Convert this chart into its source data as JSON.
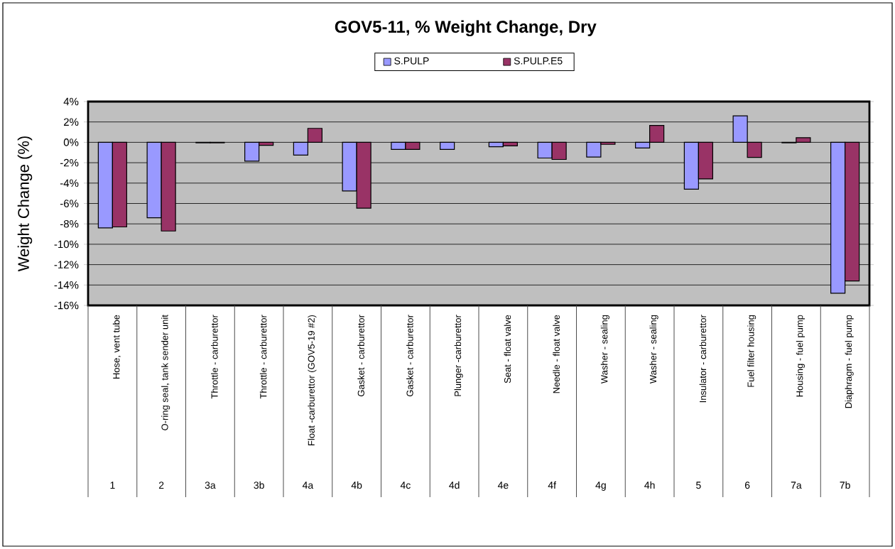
{
  "chart_data": {
    "type": "bar",
    "title": "GOV5-11, % Weight Change, Dry",
    "ylabel": "Weight Change (%)",
    "categories": [
      "Hose, vent tube",
      "O-ring seal, tank sender unit",
      "Throttle - carburettor",
      "Throttle - carburettor",
      "Float -carburettor (GOV5-19 #2)",
      "Gasket - carburettor",
      "Gasket - carburettor",
      "Plunger -carburettor",
      "Seat - float valve",
      "Needle - float valve",
      "Washer - sealing",
      "Washer - sealing",
      "Insulator - carburettor",
      "Fuel filter housing",
      "Housing - fuel pump",
      "Diaphragm - fuel pump"
    ],
    "series": [
      {
        "name": "S.PULP",
        "color": "#9999ff",
        "values": [
          -8.4,
          -7.4,
          -0.05,
          -1.85,
          -1.25,
          -4.77,
          -0.7,
          -0.7,
          -0.44,
          -1.54,
          -1.44,
          -0.56,
          -4.6,
          2.6,
          -0.05,
          -14.8
        ]
      },
      {
        "name": "S.PULP.E5",
        "color": "#993366",
        "values": [
          -8.3,
          -8.7,
          -0.05,
          -0.3,
          1.37,
          -6.46,
          -0.7,
          null,
          -0.34,
          -1.68,
          -0.2,
          1.66,
          -3.59,
          -1.48,
          0.45,
          -13.6
        ]
      }
    ],
    "ylim": [
      -16,
      4
    ],
    "yticks": [
      {
        "value": -16,
        "label": "-16%"
      },
      {
        "value": -14,
        "label": "-14%"
      },
      {
        "value": -12,
        "label": "-12%"
      },
      {
        "value": -10,
        "label": "-10%"
      },
      {
        "value": -8,
        "label": "-8%"
      },
      {
        "value": -6,
        "label": "-6%"
      },
      {
        "value": -4,
        "label": "-4%"
      },
      {
        "value": -2,
        "label": "-2%"
      },
      {
        "value": 0,
        "label": "0%"
      },
      {
        "value": 2,
        "label": "2%"
      },
      {
        "value": 4,
        "label": "4%"
      }
    ],
    "grid": "y",
    "legend": "top",
    "annotations": [
      "1",
      "2",
      "3a",
      "3b",
      "4a",
      "4b",
      "4c",
      "4d",
      "4e",
      "4f",
      "4g",
      "4h",
      "5",
      "6",
      "7a",
      "7b"
    ]
  }
}
